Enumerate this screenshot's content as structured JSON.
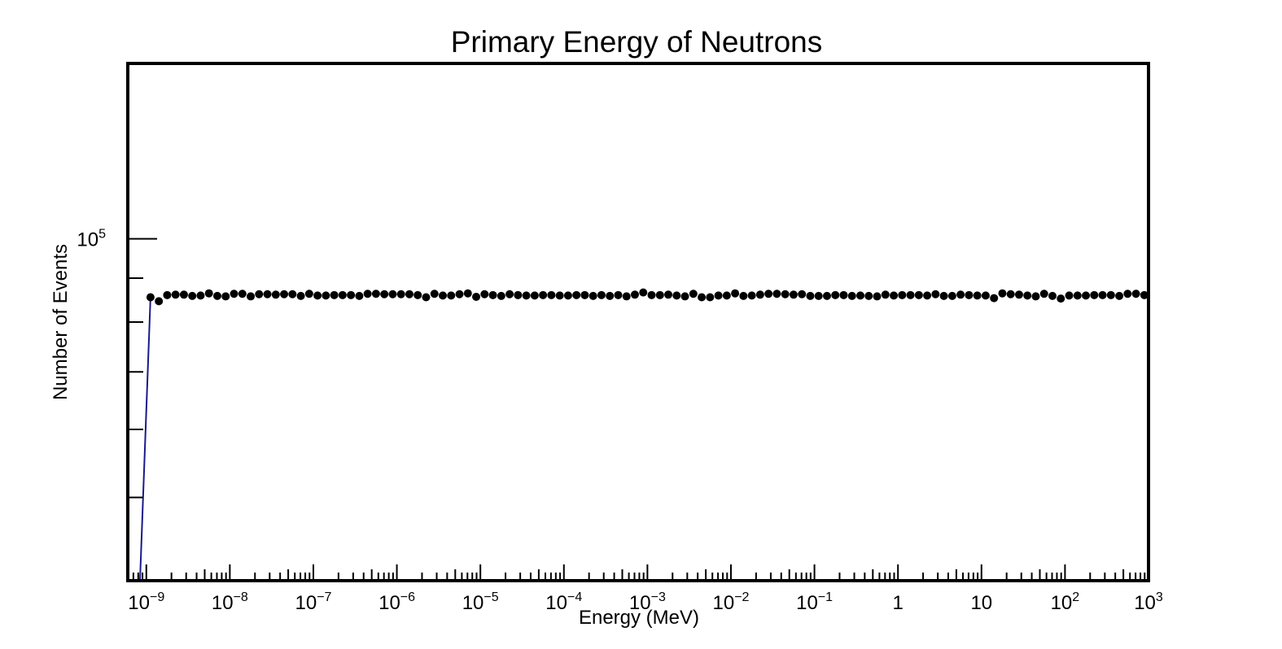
{
  "chart_data": {
    "type": "scatter",
    "title": "Primary Energy of Neutrons",
    "xlabel": "Energy (MeV)",
    "ylabel": "Number of Events",
    "xscale": "log",
    "yscale": "log",
    "xlim": [
      6e-10,
      1000
    ],
    "ylim": [
      40000,
      160000
    ],
    "grid": false,
    "legend": "none",
    "colors": {
      "marker": "#000000",
      "line": "#1a1a8c",
      "frame": "#000000"
    },
    "x_tick_labels": [
      {
        "base": "10",
        "exp": "−9",
        "value": 1e-09
      },
      {
        "base": "10",
        "exp": "−8",
        "value": 1e-08
      },
      {
        "base": "10",
        "exp": "−7",
        "value": 1e-07
      },
      {
        "base": "10",
        "exp": "−6",
        "value": 1e-06
      },
      {
        "base": "10",
        "exp": "−5",
        "value": 1e-05
      },
      {
        "base": "10",
        "exp": "−4",
        "value": 0.0001
      },
      {
        "base": "10",
        "exp": "−3",
        "value": 0.001
      },
      {
        "base": "10",
        "exp": "−2",
        "value": 0.01
      },
      {
        "base": "10",
        "exp": "−1",
        "value": 0.1
      },
      {
        "base": "1",
        "exp": "",
        "value": 1
      },
      {
        "base": "10",
        "exp": "",
        "value": 10
      },
      {
        "base": "10",
        "exp": "2",
        "value": 100
      },
      {
        "base": "10",
        "exp": "3",
        "value": 1000
      }
    ],
    "y_tick_labels": [
      {
        "base": "10",
        "exp": "5",
        "value": 100000
      }
    ],
    "series": [
      {
        "style": "markers",
        "y_values": [
          85500,
          84600,
          86000,
          86100,
          86100,
          85800,
          85900,
          86400,
          85800,
          85700,
          86300,
          86300,
          85700,
          86200,
          86200,
          86100,
          86200,
          86200,
          85800,
          86300,
          85900,
          85900,
          86000,
          86000,
          86000,
          85800,
          86300,
          86300,
          86200,
          86200,
          86200,
          86200,
          86000,
          85500,
          86300,
          85900,
          85900,
          86200,
          86400,
          85600,
          86200,
          86000,
          85800,
          86200,
          86000,
          85900,
          85900,
          86000,
          86000,
          85900,
          85900,
          86000,
          86000,
          85800,
          86000,
          85800,
          86000,
          85700,
          86100,
          86600,
          86000,
          86000,
          86100,
          85900,
          85700,
          86300,
          85500,
          85500,
          85900,
          85900,
          86400,
          85800,
          85900,
          86100,
          86300,
          86300,
          86200,
          86100,
          86200,
          85800,
          85800,
          85800,
          86000,
          86000,
          85800,
          85900,
          85800,
          85700,
          86100,
          85900,
          86000,
          86000,
          86000,
          85900,
          86200,
          85800,
          85800,
          86100,
          86000,
          85900,
          85900,
          85300,
          86400,
          86200,
          86100,
          85900,
          85700,
          86300,
          85800,
          85200,
          85900,
          85900,
          85900,
          86000,
          86000,
          86000,
          85800,
          86300,
          86300,
          86000
        ]
      }
    ]
  }
}
